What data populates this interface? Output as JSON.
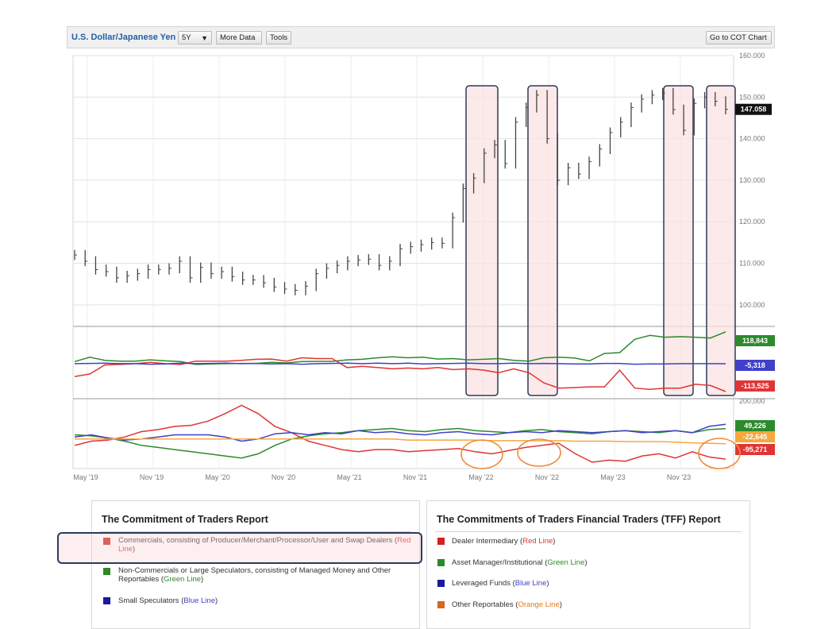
{
  "toolbar": {
    "symbol": "U.S. Dollar/Japanese Yen",
    "period_selected": "5Y",
    "more_data_label": "More Data",
    "tools_label": "Tools",
    "cot_label": "Go to COT Chart"
  },
  "colors": {
    "price": "#444444",
    "red": "#e03535",
    "green": "#2c8a2c",
    "blue": "#4040c8",
    "orange": "#f5a83c",
    "highlight_fill": "#fbe1e1",
    "highlight_border": "#2d3a58",
    "circle": "#f08a3a"
  },
  "chart_data": [
    {
      "type": "line",
      "title": "U.S. Dollar/Japanese Yen",
      "series": [
        {
          "values": [
            112.0,
            110.5,
            108.5,
            108.0,
            106.5,
            107.0,
            107.5,
            108.5,
            108.5,
            108.8,
            110.5,
            106.5,
            109.0,
            107.5,
            108.0,
            106.8,
            106.0,
            106.0,
            105.3,
            104.3,
            103.8,
            103.5,
            104.5,
            107.5,
            108.8,
            109.5,
            110.5,
            110.8,
            111.0,
            109.5,
            110.5,
            113.5,
            114.0,
            114.5,
            115.0,
            114.8,
            121.0,
            128.0,
            130.5,
            136.5,
            138.5,
            134.0,
            144.0,
            147.5,
            150.5,
            140.0,
            130.0,
            133.0,
            131.5,
            134.5,
            137.5,
            141.5,
            144.0,
            147.5,
            149.5,
            150.5,
            151.0,
            147.0,
            142.0,
            148.5,
            150.0,
            149.0,
            147.058
          ]
        }
      ],
      "ylim": [
        95,
        160
      ],
      "yticks": [
        "160.000",
        "150.000",
        "140.000",
        "130.000",
        "120.000",
        "110.000",
        "100.000"
      ],
      "last_value_label": "147.058"
    },
    {
      "type": "line",
      "title": "The Commitment of Traders Report",
      "series": [
        {
          "name": "Non-Commercials",
          "color": "green",
          "values": [
            3,
            20,
            8,
            5,
            5,
            10,
            6,
            3,
            -8,
            -6,
            -5,
            -4,
            -4,
            0,
            -2,
            3,
            4,
            4,
            10,
            12,
            18,
            22,
            18,
            20,
            13,
            15,
            10,
            12,
            15,
            8,
            5,
            18,
            20,
            17,
            6,
            35,
            38,
            90,
            105,
            98,
            100,
            98,
            95,
            118.843
          ]
        },
        {
          "name": "Commercials",
          "color": "red",
          "values": [
            -55,
            -45,
            -10,
            -8,
            -5,
            0,
            -5,
            -8,
            5,
            5,
            5,
            8,
            12,
            13,
            5,
            18,
            15,
            15,
            -20,
            -15,
            -20,
            -25,
            -22,
            -25,
            -20,
            -28,
            -25,
            -30,
            -40,
            -25,
            -40,
            -80,
            -100,
            -98,
            -95,
            -95,
            -30,
            -100,
            -105,
            -100,
            -100,
            -85,
            -90,
            -113.525
          ]
        },
        {
          "name": "Small Speculators",
          "color": "blue",
          "values": [
            -5,
            -4,
            -3,
            -5,
            -5,
            -7,
            -6,
            -3,
            -5,
            -4,
            -3,
            -5,
            -4,
            -6,
            -5,
            -7,
            -5,
            -4,
            -3,
            -5,
            -3,
            -5,
            -3,
            -6,
            -5,
            -4,
            -3,
            -5,
            -5,
            -3,
            -5,
            -4,
            -5,
            -6,
            -6,
            -4,
            -4,
            -7,
            -6,
            -6,
            -5,
            -5,
            -5,
            -5.318
          ]
        }
      ],
      "last_value_labels": [
        "118,843",
        "-5,318",
        "-113,525"
      ]
    },
    {
      "type": "line",
      "title": "The Commitments of Traders Financial Traders (TFF) Report",
      "series": [
        {
          "name": "Dealer Intermediary",
          "color": "red",
          "values": [
            -30,
            -10,
            -5,
            10,
            35,
            45,
            60,
            65,
            85,
            120,
            160,
            120,
            60,
            30,
            -10,
            -30,
            -50,
            -60,
            -50,
            -50,
            -60,
            -55,
            -50,
            -45,
            -60,
            -70,
            -55,
            -40,
            -30,
            -20,
            -70,
            -110,
            -100,
            -105,
            -80,
            -70,
            -90,
            -60,
            -85,
            -95.271
          ]
        },
        {
          "name": "Asset Manager/Institutional",
          "color": "green",
          "values": [
            20,
            15,
            5,
            -10,
            -30,
            -40,
            -50,
            -60,
            -70,
            -80,
            -90,
            -70,
            -30,
            0,
            15,
            25,
            30,
            40,
            45,
            50,
            40,
            35,
            45,
            50,
            40,
            35,
            30,
            40,
            45,
            35,
            30,
            25,
            35,
            40,
            35,
            30,
            40,
            30,
            45,
            49.226
          ]
        },
        {
          "name": "Leveraged Funds",
          "color": "blue",
          "values": [
            10,
            20,
            5,
            -5,
            0,
            10,
            20,
            20,
            20,
            10,
            -10,
            0,
            25,
            30,
            20,
            30,
            25,
            40,
            30,
            35,
            25,
            20,
            30,
            35,
            25,
            20,
            30,
            35,
            30,
            40,
            35,
            30,
            35,
            40,
            30,
            35,
            40,
            30,
            60,
            70
          ]
        },
        {
          "name": "Other Reportables",
          "color": "orange",
          "values": [
            0,
            0,
            0,
            0,
            0,
            0,
            0,
            0,
            0,
            0,
            0,
            0,
            0,
            0,
            0,
            0,
            0,
            0,
            0,
            0,
            -5,
            -5,
            -5,
            -5,
            -5,
            -8,
            -8,
            -8,
            -8,
            -8,
            -10,
            -10,
            -10,
            -12,
            -12,
            -12,
            -15,
            -18,
            -20,
            -22.645
          ]
        }
      ],
      "ytick_top": "200,000",
      "last_value_labels": [
        "49,226",
        "-22,645",
        "-95,271"
      ]
    }
  ],
  "x_axis": {
    "ticks": [
      "May '19",
      "Nov '19",
      "May '20",
      "Nov '20",
      "May '21",
      "Nov '21",
      "May '22",
      "Nov '22",
      "May '23",
      "Nov '23"
    ]
  },
  "legend_cot": {
    "title": "The Commitment of Traders Report",
    "items": [
      {
        "text": "Commercials, consisting of Producer/Merchant/Processor/User and Swap Dealers (",
        "color_name": "Red Line",
        "color": "red"
      },
      {
        "text": "Non-Commercials or Large Speculators, consisting of Managed Money and Other Reportables (",
        "color_name": "Green Line",
        "color": "green"
      },
      {
        "text": "Small Speculators (",
        "color_name": "Blue Line",
        "color": "blue"
      }
    ]
  },
  "legend_tff": {
    "title": "The Commitments of Traders Financial Traders (TFF) Report",
    "items": [
      {
        "text": "Dealer Intermediary (",
        "color_name": "Red Line",
        "color": "red"
      },
      {
        "text": "Asset Manager/Institutional (",
        "color_name": "Green Line",
        "color": "green"
      },
      {
        "text": "Leveraged Funds (",
        "color_name": "Blue Line",
        "color": "blue"
      },
      {
        "text": "Other Reportables (",
        "color_name": "Orange Line",
        "color": "orange"
      }
    ]
  }
}
